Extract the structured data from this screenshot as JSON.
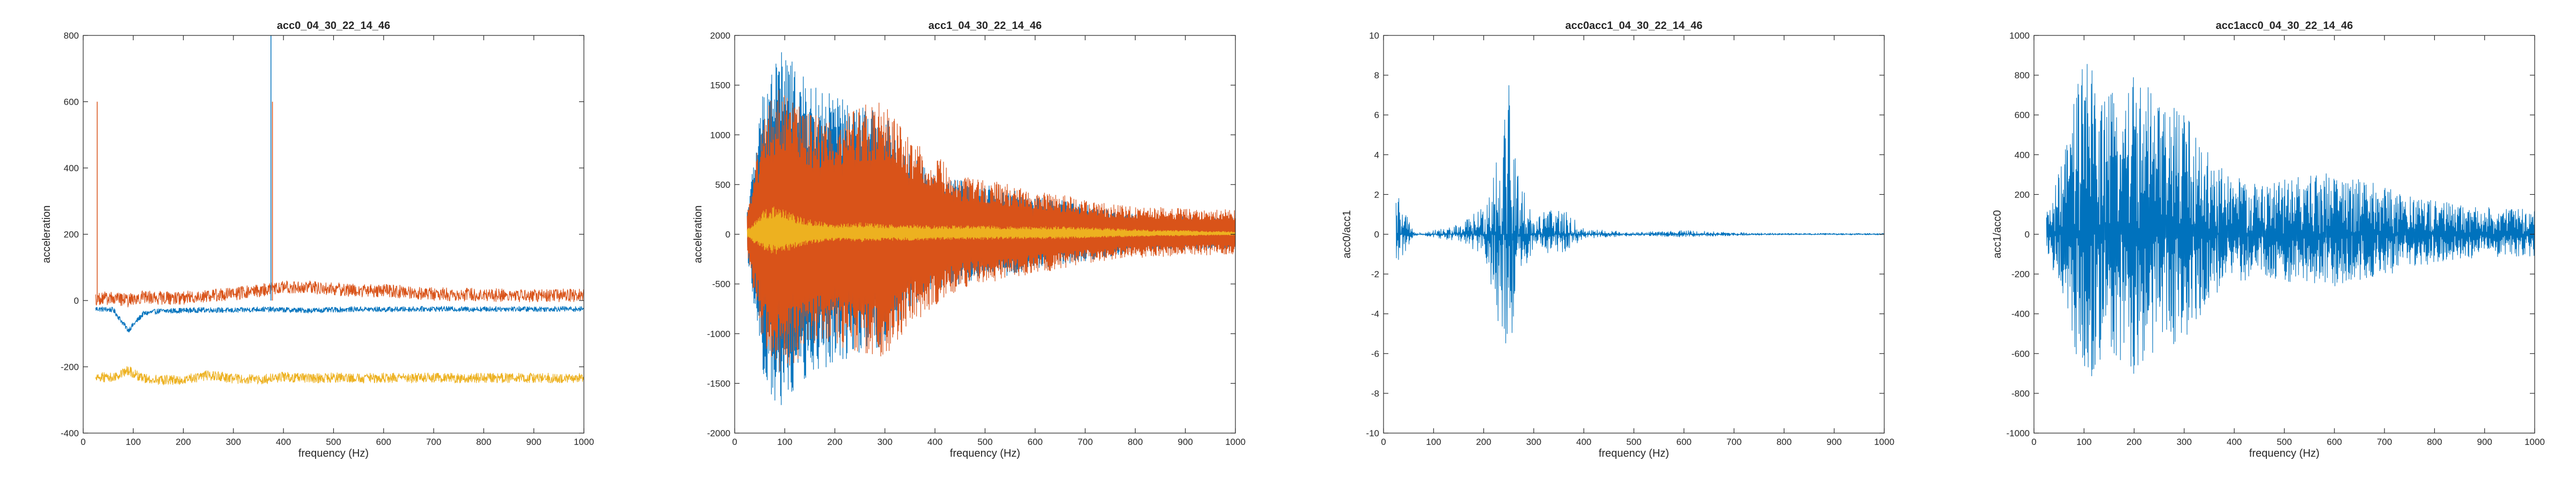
{
  "colors": {
    "blue": "#0072BD",
    "orange": "#D95319",
    "yellow": "#EDB120",
    "axis": "#262626"
  },
  "chart_data": [
    {
      "type": "line",
      "title": "acc0_04_30_22_14_46",
      "xlabel": "frequency (Hz)",
      "ylabel": "acceleration",
      "xlim": [
        0,
        1000
      ],
      "ylim": [
        -400,
        800
      ],
      "xticks": [
        0,
        100,
        200,
        300,
        400,
        500,
        600,
        700,
        800,
        900,
        1000
      ],
      "yticks": [
        -400,
        -200,
        0,
        200,
        400,
        600,
        800
      ],
      "x": [
        25,
        60,
        90,
        120,
        150,
        200,
        250,
        300,
        350,
        400,
        450,
        500,
        550,
        600,
        650,
        700,
        750,
        800,
        850,
        900,
        950,
        1000
      ],
      "series": [
        {
          "color": "#0072BD",
          "values": [
            -25,
            -28,
            -90,
            -40,
            -32,
            -30,
            -28,
            -30,
            -26,
            -28,
            -30,
            -28,
            -26,
            -27,
            -26,
            -25,
            -26,
            -26,
            -25,
            -26,
            -25,
            -26
          ]
        },
        {
          "color": "#D95319",
          "values": [
            5,
            8,
            0,
            12,
            8,
            8,
            15,
            20,
            30,
            40,
            40,
            35,
            30,
            30,
            25,
            20,
            18,
            18,
            15,
            15,
            15,
            15
          ]
        },
        {
          "color": "#EDB120",
          "values": [
            -230,
            -232,
            -210,
            -235,
            -240,
            -240,
            -225,
            -235,
            -240,
            -230,
            -235,
            -232,
            -235,
            -233,
            -234,
            -233,
            -234,
            -233,
            -234,
            -233,
            -234,
            -234
          ]
        }
      ]
    },
    {
      "type": "line",
      "title": "acc1_04_30_22_14_46",
      "xlabel": "frequency (Hz)",
      "ylabel": "acceleration",
      "xlim": [
        0,
        1000
      ],
      "ylim": [
        -2000,
        2000
      ],
      "xticks": [
        0,
        100,
        200,
        300,
        400,
        500,
        600,
        700,
        800,
        900,
        1000
      ],
      "yticks": [
        -2000,
        -1500,
        -1000,
        -500,
        0,
        500,
        1000,
        1500,
        2000
      ],
      "x": [
        25,
        60,
        90,
        120,
        150,
        200,
        250,
        300,
        350,
        400,
        450,
        500,
        550,
        600,
        650,
        700,
        750,
        800,
        850,
        900,
        950,
        1000
      ],
      "series": [
        {
          "color": "#0072BD",
          "values": [
            250,
            1600,
            1900,
            1700,
            1500,
            1400,
            1300,
            1200,
            800,
            600,
            550,
            500,
            450,
            380,
            350,
            300,
            250,
            200,
            180,
            180,
            170,
            170
          ]
        },
        {
          "color": "#D95319",
          "values": [
            250,
            1300,
            1500,
            1400,
            1200,
            1200,
            1300,
            1350,
            1000,
            800,
            600,
            550,
            500,
            450,
            400,
            350,
            300,
            280,
            270,
            260,
            250,
            250
          ]
        },
        {
          "color": "#EDB120",
          "values": [
            60,
            250,
            300,
            200,
            150,
            100,
            120,
            100,
            100,
            90,
            90,
            90,
            80,
            80,
            80,
            70,
            60,
            50,
            40,
            40,
            30,
            30
          ]
        }
      ]
    },
    {
      "type": "line",
      "title": "acc0acc1_04_30_22_14_46",
      "xlabel": "frequency (Hz)",
      "ylabel": "acc0/acc1",
      "xlim": [
        0,
        1000
      ],
      "ylim": [
        -10,
        10
      ],
      "xticks": [
        0,
        100,
        200,
        300,
        400,
        500,
        600,
        700,
        800,
        900,
        1000
      ],
      "yticks": [
        -10,
        -8,
        -6,
        -4,
        -2,
        0,
        2,
        4,
        6,
        8,
        10
      ],
      "x": [
        25,
        60,
        100,
        150,
        200,
        230,
        250,
        270,
        300,
        350,
        400,
        500,
        600,
        700,
        800,
        900,
        1000
      ],
      "series": [
        {
          "color": "#0072BD",
          "values": [
            2.3,
            0.1,
            0.2,
            0.5,
            1.5,
            6,
            9,
            3,
            1,
            1.5,
            0.3,
            0.1,
            0.2,
            0.1,
            0.05,
            0.05,
            0.05
          ]
        }
      ]
    },
    {
      "type": "line",
      "title": "acc1acc0_04_30_22_14_46",
      "xlabel": "frequency (Hz)",
      "ylabel": "acc1/acc0",
      "xlim": [
        0,
        1000
      ],
      "ylim": [
        -1000,
        1000
      ],
      "xticks": [
        0,
        100,
        200,
        300,
        400,
        500,
        600,
        700,
        800,
        900,
        1000
      ],
      "yticks": [
        -1000,
        -800,
        -600,
        -400,
        -200,
        0,
        200,
        400,
        600,
        800,
        1000
      ],
      "x": [
        25,
        60,
        100,
        150,
        200,
        250,
        300,
        350,
        400,
        450,
        500,
        550,
        600,
        650,
        700,
        750,
        800,
        850,
        900,
        950,
        1000
      ],
      "series": [
        {
          "color": "#0072BD",
          "values": [
            100,
            400,
            930,
            700,
            850,
            650,
            650,
            400,
            300,
            250,
            280,
            300,
            320,
            280,
            250,
            200,
            170,
            150,
            140,
            130,
            130
          ]
        }
      ]
    }
  ]
}
